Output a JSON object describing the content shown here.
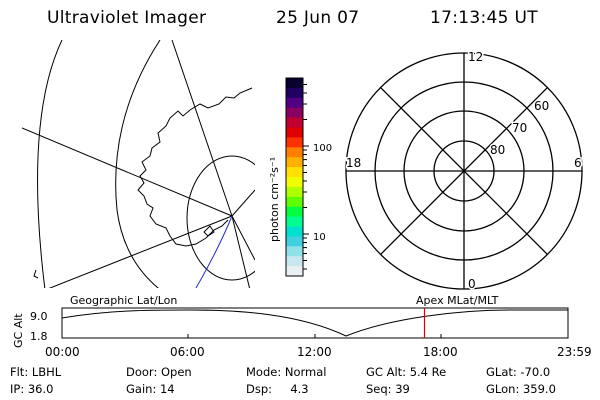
{
  "header": {
    "instrument": "Ultraviolet Imager",
    "date": "25 Jun 07",
    "time": "17:13:45 UT"
  },
  "colorbar": {
    "unit_label": "photon cm⁻²s⁻¹",
    "ticks": [
      {
        "value": 100,
        "label": "100"
      },
      {
        "value": 10,
        "label": "10"
      }
    ],
    "scale": "log",
    "colors": [
      "#0a0030",
      "#200060",
      "#500080",
      "#8a0060",
      "#c00030",
      "#e00000",
      "#ff3000",
      "#ff8000",
      "#ffb000",
      "#ffe000",
      "#f0ff00",
      "#b0ff00",
      "#60ff00",
      "#00ff40",
      "#00ff90",
      "#00e0d0",
      "#40d0e0",
      "#90e0e8",
      "#c8e8f0",
      "#e8f0f4"
    ]
  },
  "polar_plot": {
    "mlt_labels": [
      "12",
      "18",
      "6",
      "0"
    ],
    "lat_labels": [
      "60",
      "70",
      "80"
    ]
  },
  "timeline": {
    "left_title": "Geographic Lat/Lon",
    "right_title": "Apex MLat/MLT",
    "y_axis_label": "GC Alt",
    "y_ticks": [
      "9.0",
      "1.8"
    ],
    "x_ticks": [
      "00:00",
      "06:00",
      "12:00",
      "18:00",
      "23:59"
    ],
    "current_time_fraction": 0.7165,
    "marker_color": "#dd0000"
  },
  "footer": {
    "flt_label": "Flt:",
    "flt_value": "LBHL",
    "ip_label": "IP:",
    "ip_value": "36.0",
    "door_label": "Door:",
    "door_value": "Open",
    "gain_label": "Gain:",
    "gain_value": "14",
    "mode_label": "Mode:",
    "mode_value": "Normal",
    "dsp_label": "Dsp:",
    "dsp_value": "4.3",
    "gcalt_label": "GC Alt:",
    "gcalt_value": "5.4 Re",
    "seq_label": "Seq:",
    "seq_value": "39",
    "glat_label": "GLat:",
    "glat_value": "-70.0",
    "glon_label": "GLon:",
    "glon_value": "359.0"
  }
}
